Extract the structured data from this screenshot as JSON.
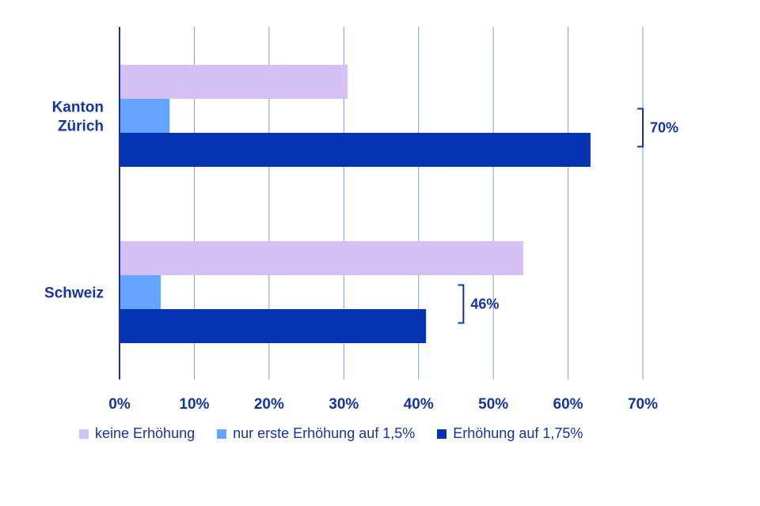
{
  "chart_data": {
    "type": "bar",
    "orientation": "horizontal",
    "categories": [
      [
        "Kanton",
        "Zürich"
      ],
      [
        "Schweiz"
      ]
    ],
    "series": [
      {
        "name": "keine Erhöhung",
        "color": "#d4c0f3",
        "values": [
          30.5,
          54
        ]
      },
      {
        "name": "nur erste Erhöhung auf 1,5%",
        "color": "#66a5ff",
        "values": [
          6.7,
          5.5
        ]
      },
      {
        "name": "Erhöhung auf 1,75%",
        "color": "#0534b3",
        "values": [
          63,
          41
        ]
      }
    ],
    "xlim": [
      0,
      70
    ],
    "xticks": [
      0,
      10,
      20,
      30,
      40,
      50,
      60,
      70
    ],
    "xtick_labels": [
      "0%",
      "10%",
      "20%",
      "30%",
      "40%",
      "50%",
      "60%",
      "70%"
    ],
    "grid": true,
    "legend_position": "bottom",
    "annotations": [
      {
        "category_index": 0,
        "label": "70%",
        "bracket_x": 70
      },
      {
        "category_index": 1,
        "label": "46%",
        "bracket_x": 46
      }
    ],
    "text_color": "#1434a4",
    "grid_color": "#7f9cd6"
  }
}
